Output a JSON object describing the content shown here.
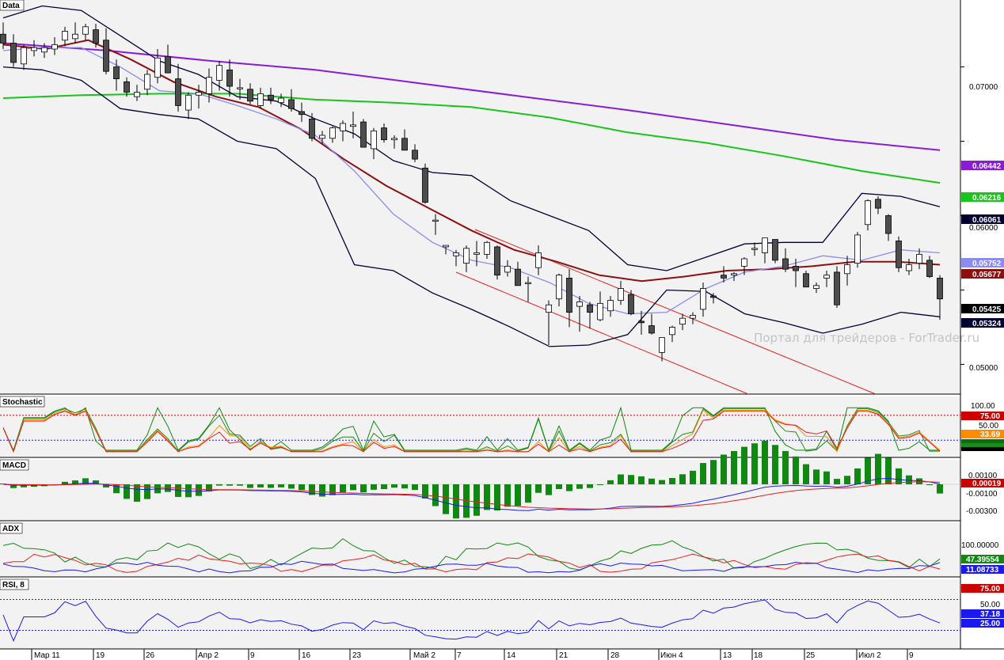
{
  "watermark": "Портал для трейдеров - ForTrader.ru",
  "x_labels": [
    "Мар 11",
    "19",
    "26",
    "Апр 2",
    "9",
    "16",
    "23",
    "Май 2",
    "7",
    "14",
    "21",
    "28",
    "Июн 4",
    "13",
    "18",
    "25",
    "Июл 2",
    "9"
  ],
  "panels": {
    "price": {
      "title": "Data",
      "y_ticks": [
        "0.07000",
        "0.06000",
        "0.05000"
      ],
      "tags": [
        {
          "text": "0.06442",
          "color": "#8a1cd6"
        },
        {
          "text": "0.06216",
          "color": "#19c51a"
        },
        {
          "text": "0.06061",
          "color": "#000033"
        },
        {
          "text": "0.05752",
          "color": "#8a8cf2"
        },
        {
          "text": "0.05677",
          "color": "#8b1010"
        },
        {
          "text": "0.05425",
          "color": "#000000"
        },
        {
          "text": "0.05324",
          "color": "#000033"
        }
      ]
    },
    "stochastic": {
      "title": "Stochastic",
      "y_ticks": [
        "100.00",
        "50.00"
      ],
      "tags": [
        {
          "text": "75.00",
          "color": "#cc0000"
        },
        {
          "text": "33.69",
          "color": "#ff8c00"
        }
      ]
    },
    "macd": {
      "title": "MACD",
      "y_ticks": [
        "0.00100",
        "-0.00100",
        "-0.00300"
      ],
      "tags": [
        {
          "text": "0.00019",
          "color": "#cc0000"
        }
      ]
    },
    "adx": {
      "title": "ADX",
      "y_ticks": [
        "100.00000"
      ],
      "tags": [
        {
          "text": "47.39554",
          "color": "#118811"
        },
        {
          "text": "11.08733",
          "color": "#1a1aee"
        }
      ]
    },
    "rsi": {
      "title": "RSI, 8",
      "y_ticks": [
        "50.00"
      ],
      "tags": [
        {
          "text": "75.00",
          "color": "#cc0000"
        },
        {
          "text": "37.18",
          "color": "#1a1aee"
        },
        {
          "text": "25.00",
          "color": "#1a1aee"
        }
      ]
    }
  },
  "chart_data": {
    "type": "candlestick",
    "title": "Data",
    "ylim": [
      0.048,
      0.0745
    ],
    "ohlc": [
      [
        0.0722,
        0.073,
        0.0712,
        0.0716
      ],
      [
        0.0716,
        0.0722,
        0.07,
        0.0703
      ],
      [
        0.0702,
        0.0715,
        0.0698,
        0.0713
      ],
      [
        0.0711,
        0.0718,
        0.0707,
        0.0713
      ],
      [
        0.071,
        0.0716,
        0.0706,
        0.0713
      ],
      [
        0.0712,
        0.072,
        0.0708,
        0.0715
      ],
      [
        0.0718,
        0.0727,
        0.0714,
        0.0724
      ],
      [
        0.0719,
        0.073,
        0.0716,
        0.0722
      ],
      [
        0.0722,
        0.0729,
        0.0718,
        0.0727
      ],
      [
        0.0725,
        0.0729,
        0.0713,
        0.0716
      ],
      [
        0.0718,
        0.0726,
        0.0695,
        0.0697
      ],
      [
        0.07,
        0.0705,
        0.0684,
        0.0692
      ],
      [
        0.069,
        0.0693,
        0.068,
        0.0683
      ],
      [
        0.068,
        0.0688,
        0.0677,
        0.0683
      ],
      [
        0.0685,
        0.0698,
        0.0681,
        0.0695
      ],
      [
        0.0693,
        0.0712,
        0.0689,
        0.0706
      ],
      [
        0.0707,
        0.0715,
        0.0696,
        0.0696
      ],
      [
        0.0692,
        0.0702,
        0.067,
        0.0674
      ],
      [
        0.0671,
        0.0683,
        0.0665,
        0.0681
      ],
      [
        0.0681,
        0.0688,
        0.0672,
        0.0683
      ],
      [
        0.0682,
        0.0699,
        0.0676,
        0.0693
      ],
      [
        0.0691,
        0.0704,
        0.0684,
        0.0701
      ],
      [
        0.0698,
        0.0705,
        0.068,
        0.0687
      ],
      [
        0.0686,
        0.0692,
        0.0678,
        0.0686
      ],
      [
        0.0685,
        0.0689,
        0.0675,
        0.0677
      ],
      [
        0.0674,
        0.0686,
        0.0672,
        0.0682
      ],
      [
        0.0681,
        0.0686,
        0.0675,
        0.0678
      ],
      [
        0.0676,
        0.0682,
        0.0673,
        0.0679
      ],
      [
        0.0678,
        0.0685,
        0.067,
        0.0672
      ],
      [
        0.067,
        0.0676,
        0.0663,
        0.0668
      ],
      [
        0.0665,
        0.0669,
        0.065,
        0.0652
      ],
      [
        0.0652,
        0.0657,
        0.0648,
        0.0654
      ],
      [
        0.0652,
        0.066,
        0.0649,
        0.0659
      ],
      [
        0.0657,
        0.0664,
        0.065,
        0.0662
      ],
      [
        0.066,
        0.067,
        0.0652,
        0.0661
      ],
      [
        0.0663,
        0.0665,
        0.0646,
        0.0646
      ],
      [
        0.0645,
        0.0659,
        0.0638,
        0.0657
      ],
      [
        0.0659,
        0.0662,
        0.0649,
        0.0651
      ],
      [
        0.0651,
        0.0654,
        0.0645,
        0.0652
      ],
      [
        0.0652,
        0.0658,
        0.0644,
        0.0644
      ],
      [
        0.0644,
        0.0648,
        0.0636,
        0.0638
      ],
      [
        0.0632,
        0.0635,
        0.0608,
        0.0609
      ],
      [
        0.0597,
        0.0601,
        0.0587,
        0.0597
      ],
      [
        0.0579,
        0.058,
        0.0574,
        0.058
      ],
      [
        0.0573,
        0.0577,
        0.0566,
        0.0575
      ],
      [
        0.0568,
        0.058,
        0.0562,
        0.0578
      ],
      [
        0.0574,
        0.0583,
        0.0566,
        0.0575
      ],
      [
        0.0574,
        0.0583,
        0.0571,
        0.0582
      ],
      [
        0.0579,
        0.058,
        0.0557,
        0.056
      ],
      [
        0.0562,
        0.057,
        0.0559,
        0.0566
      ],
      [
        0.0564,
        0.0569,
        0.0553,
        0.0553
      ],
      [
        0.0555,
        0.0559,
        0.0542,
        0.0555
      ],
      [
        0.0565,
        0.058,
        0.056,
        0.0575
      ],
      [
        0.0535,
        0.0543,
        0.0513,
        0.054
      ],
      [
        0.0544,
        0.0561,
        0.0539,
        0.056
      ],
      [
        0.0558,
        0.0564,
        0.0525,
        0.0535
      ],
      [
        0.0539,
        0.0546,
        0.0522,
        0.0542
      ],
      [
        0.054,
        0.0542,
        0.0524,
        0.0535
      ],
      [
        0.053,
        0.0549,
        0.0529,
        0.0541
      ],
      [
        0.0536,
        0.0546,
        0.0532,
        0.0543
      ],
      [
        0.0543,
        0.0556,
        0.054,
        0.0551
      ],
      [
        0.0547,
        0.055,
        0.0533,
        0.0534
      ],
      [
        0.0529,
        0.0536,
        0.052,
        0.0528
      ],
      [
        0.0526,
        0.0534,
        0.052,
        0.0521
      ],
      [
        0.0508,
        0.0518,
        0.0502,
        0.0518
      ],
      [
        0.052,
        0.0526,
        0.0515,
        0.0525
      ],
      [
        0.0527,
        0.0534,
        0.0523,
        0.0531
      ],
      [
        0.0531,
        0.0535,
        0.0527,
        0.0533
      ],
      [
        0.0537,
        0.0555,
        0.0532,
        0.0551
      ],
      [
        0.0546,
        0.0548,
        0.0541,
        0.0545
      ],
      [
        0.056,
        0.0566,
        0.0555,
        0.0558
      ],
      [
        0.056,
        0.0562,
        0.0556,
        0.0561
      ],
      [
        0.0566,
        0.0572,
        0.056,
        0.0571
      ],
      [
        0.0578,
        0.0582,
        0.0573,
        0.0578
      ],
      [
        0.0575,
        0.0585,
        0.0568,
        0.0585
      ],
      [
        0.0584,
        0.0584,
        0.0568,
        0.057
      ],
      [
        0.0571,
        0.0578,
        0.0562,
        0.0564
      ],
      [
        0.0566,
        0.0571,
        0.0552,
        0.0563
      ],
      [
        0.0561,
        0.0563,
        0.0552,
        0.0552
      ],
      [
        0.0551,
        0.0555,
        0.0548,
        0.0553
      ],
      [
        0.0558,
        0.0563,
        0.0552,
        0.056
      ],
      [
        0.0562,
        0.0566,
        0.0538,
        0.054
      ],
      [
        0.0561,
        0.0573,
        0.0553,
        0.0567
      ],
      [
        0.0568,
        0.0589,
        0.0565,
        0.0587
      ],
      [
        0.0594,
        0.0611,
        0.059,
        0.061
      ],
      [
        0.0611,
        0.0613,
        0.0601,
        0.0605
      ],
      [
        0.06,
        0.0601,
        0.0583,
        0.0588
      ],
      [
        0.0583,
        0.0586,
        0.0562,
        0.0565
      ],
      [
        0.0563,
        0.0571,
        0.056,
        0.0567
      ],
      [
        0.0568,
        0.0578,
        0.0564,
        0.0574
      ],
      [
        0.057,
        0.0573,
        0.0558,
        0.0559
      ],
      [
        0.0558,
        0.056,
        0.053,
        0.0544
      ]
    ],
    "series": [
      {
        "name": "",
        "color": "#8a1cd6",
        "values": [
          0.0716,
          0.0711,
          0.0704,
          0.0698,
          0.0689,
          0.068,
          0.0671,
          0.0661,
          0.0651,
          0.0644
        ]
      },
      {
        "name": "",
        "color": "#19c51a",
        "values": [
          0.0679,
          0.0681,
          0.0682,
          0.0682,
          0.0678,
          0.0676,
          0.0673,
          0.0666,
          0.0656,
          0.0649,
          0.064,
          0.063,
          0.0622
        ]
      },
      {
        "name": "",
        "color": "#8b1010",
        "values": [
          0.0715,
          0.0712,
          0.0718,
          0.0705,
          0.069,
          0.068,
          0.0673,
          0.0658,
          0.0638,
          0.062,
          0.0605,
          0.059,
          0.0577,
          0.0569,
          0.056,
          0.0556,
          0.0559,
          0.0563,
          0.0564,
          0.0566,
          0.0569,
          0.0569,
          0.0567
        ]
      },
      {
        "name": "",
        "color": "#8a8cf2",
        "values": [
          0.0711,
          0.0713,
          0.0713,
          0.07,
          0.0684,
          0.0682,
          0.0674,
          0.0665,
          0.0654,
          0.063,
          0.0601,
          0.0582,
          0.057,
          0.0565,
          0.0555,
          0.0541,
          0.0534,
          0.0535,
          0.0551,
          0.0562,
          0.0566,
          0.0573,
          0.057,
          0.0577,
          0.0575
        ]
      },
      {
        "name": "",
        "color": "#000033",
        "values": [
          0.0733,
          0.0741,
          0.0738,
          0.0721,
          0.0704,
          0.0695,
          0.068,
          0.0677,
          0.0665,
          0.0655,
          0.0637,
          0.0629,
          0.0627,
          0.061,
          0.06,
          0.059,
          0.0567,
          0.0563,
          0.0572,
          0.0581,
          0.0582,
          0.0582,
          0.0615,
          0.0613,
          0.0606
        ]
      },
      {
        "name": "",
        "color": "#000033",
        "values": [
          0.07,
          0.0698,
          0.0691,
          0.0672,
          0.0668,
          0.0665,
          0.065,
          0.0645,
          0.0625,
          0.0567,
          0.0563,
          0.0548,
          0.0537,
          0.0525,
          0.0512,
          0.0513,
          0.052,
          0.055,
          0.0549,
          0.0534,
          0.0528,
          0.0521,
          0.0527,
          0.0535,
          0.0532
        ]
      }
    ]
  }
}
